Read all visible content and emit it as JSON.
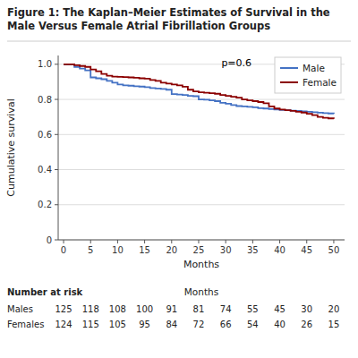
{
  "chart_data": {
    "type": "step",
    "title": "Figure 1: The Kaplan–Meier Estimates of Survival in the\nMale Versus Female Atrial Fibrillation Groups",
    "x_label": "Months",
    "y_label": "Cumulative survival",
    "annotation": "p=0.6",
    "x": [
      0,
      1,
      2,
      3,
      4,
      5,
      6,
      7,
      8,
      9,
      10,
      11,
      12,
      13,
      14,
      15,
      16,
      17,
      18,
      19,
      20,
      21,
      22,
      23,
      24,
      25,
      26,
      27,
      28,
      29,
      30,
      31,
      32,
      33,
      34,
      35,
      36,
      37,
      38,
      39,
      40,
      41,
      42,
      43,
      44,
      45,
      46,
      47,
      48,
      49,
      50
    ],
    "series": [
      {
        "name": "Male",
        "color": "#4472C4",
        "values": [
          1.0,
          1.0,
          0.985,
          0.975,
          0.965,
          0.925,
          0.92,
          0.915,
          0.905,
          0.895,
          0.885,
          0.88,
          0.878,
          0.875,
          0.873,
          0.87,
          0.865,
          0.862,
          0.86,
          0.855,
          0.83,
          0.828,
          0.825,
          0.82,
          0.818,
          0.8,
          0.798,
          0.795,
          0.79,
          0.78,
          0.775,
          0.768,
          0.762,
          0.76,
          0.758,
          0.755,
          0.75,
          0.748,
          0.745,
          0.742,
          0.74,
          0.738,
          0.736,
          0.734,
          0.732,
          0.73,
          0.727,
          0.724,
          0.722,
          0.72,
          0.718
        ]
      },
      {
        "name": "Female",
        "color": "#8B0000",
        "values": [
          1.0,
          1.0,
          0.995,
          0.99,
          0.985,
          0.97,
          0.96,
          0.945,
          0.935,
          0.93,
          0.928,
          0.927,
          0.925,
          0.923,
          0.92,
          0.918,
          0.91,
          0.905,
          0.895,
          0.89,
          0.885,
          0.88,
          0.872,
          0.855,
          0.845,
          0.84,
          0.838,
          0.835,
          0.832,
          0.825,
          0.82,
          0.815,
          0.81,
          0.8,
          0.795,
          0.79,
          0.785,
          0.778,
          0.76,
          0.748,
          0.742,
          0.738,
          0.735,
          0.73,
          0.725,
          0.718,
          0.71,
          0.7,
          0.695,
          0.692,
          0.69
        ]
      }
    ],
    "xlim": [
      -1,
      52
    ],
    "xticks": [
      0,
      5,
      10,
      15,
      20,
      25,
      30,
      35,
      40,
      45,
      50
    ],
    "ylim": [
      0,
      1.05
    ],
    "yticks": [
      0,
      0.2,
      0.4,
      0.6,
      0.8,
      {
        "value": 1,
        "label": "1.0"
      }
    ],
    "grid": "y",
    "legend": "upper right",
    "risk_table": {
      "title": "Number at risk",
      "x": [
        0,
        5,
        10,
        15,
        20,
        25,
        30,
        35,
        40,
        45,
        50
      ],
      "rows": [
        {
          "name": "Males",
          "values": [
            125,
            118,
            108,
            100,
            91,
            81,
            74,
            55,
            45,
            30,
            20
          ]
        },
        {
          "name": "Females",
          "values": [
            124,
            115,
            105,
            95,
            84,
            72,
            66,
            54,
            40,
            26,
            15
          ]
        }
      ]
    }
  }
}
